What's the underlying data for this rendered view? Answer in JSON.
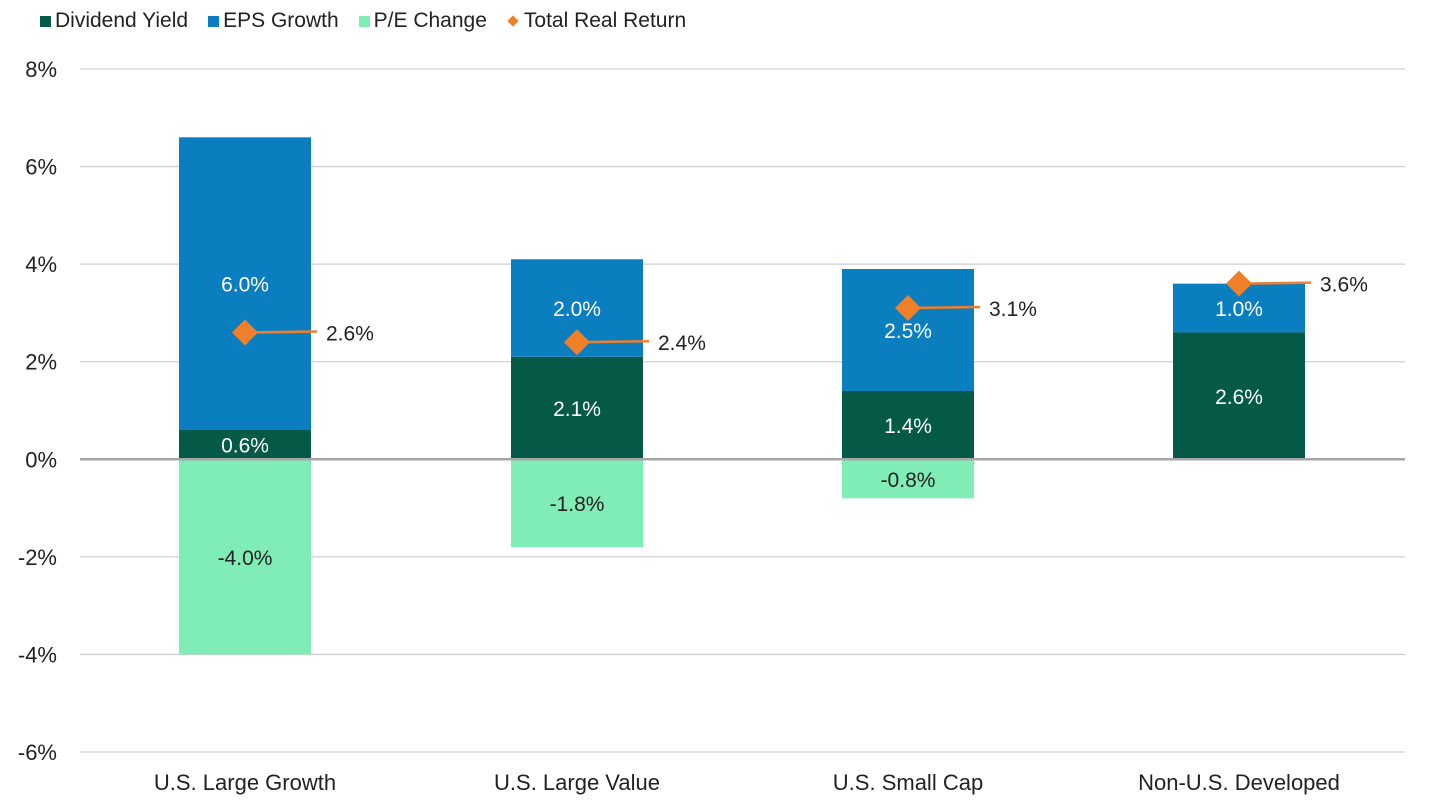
{
  "chart_data": {
    "type": "bar",
    "stacked": true,
    "categories": [
      "U.S. Large Growth",
      "U.S. Large Value",
      "U.S. Small Cap",
      "Non-U.S. Developed"
    ],
    "series": [
      {
        "name": "Dividend Yield",
        "color": "#045a46",
        "label_color": "#ffffff",
        "values": [
          0.6,
          2.1,
          1.4,
          2.6
        ],
        "labels": [
          "0.6%",
          "2.1%",
          "1.4%",
          "2.6%"
        ]
      },
      {
        "name": "EPS Growth",
        "color": "#0b7ec0",
        "label_color": "#ffffff",
        "values": [
          6.0,
          2.0,
          2.5,
          1.0
        ],
        "labels": [
          "6.0%",
          "2.0%",
          "2.5%",
          "1.0%"
        ]
      },
      {
        "name": "P/E Change",
        "color": "#80ecb6",
        "label_color": "#222222",
        "values": [
          -4.0,
          -1.8,
          -0.8,
          null
        ],
        "labels": [
          "-4.0%",
          "-1.8%",
          "-0.8%",
          null
        ]
      }
    ],
    "total": {
      "name": "Total Real Return",
      "type": "scatter",
      "marker": "diamond",
      "color": "#f07f2a",
      "values": [
        2.6,
        2.4,
        3.1,
        3.6
      ],
      "labels": [
        "2.6%",
        "2.4%",
        "3.1%",
        "3.6%"
      ]
    },
    "ylim": [
      -6,
      8
    ],
    "yticks": [
      8,
      6,
      4,
      2,
      0,
      -2,
      -4,
      -6
    ],
    "ytick_labels": [
      "8%",
      "6%",
      "4%",
      "2%",
      "0%",
      "-2%",
      "-4%",
      "-6%"
    ],
    "grid": true,
    "legend_position": "top-left",
    "title": "",
    "xlabel": "",
    "ylabel": ""
  }
}
